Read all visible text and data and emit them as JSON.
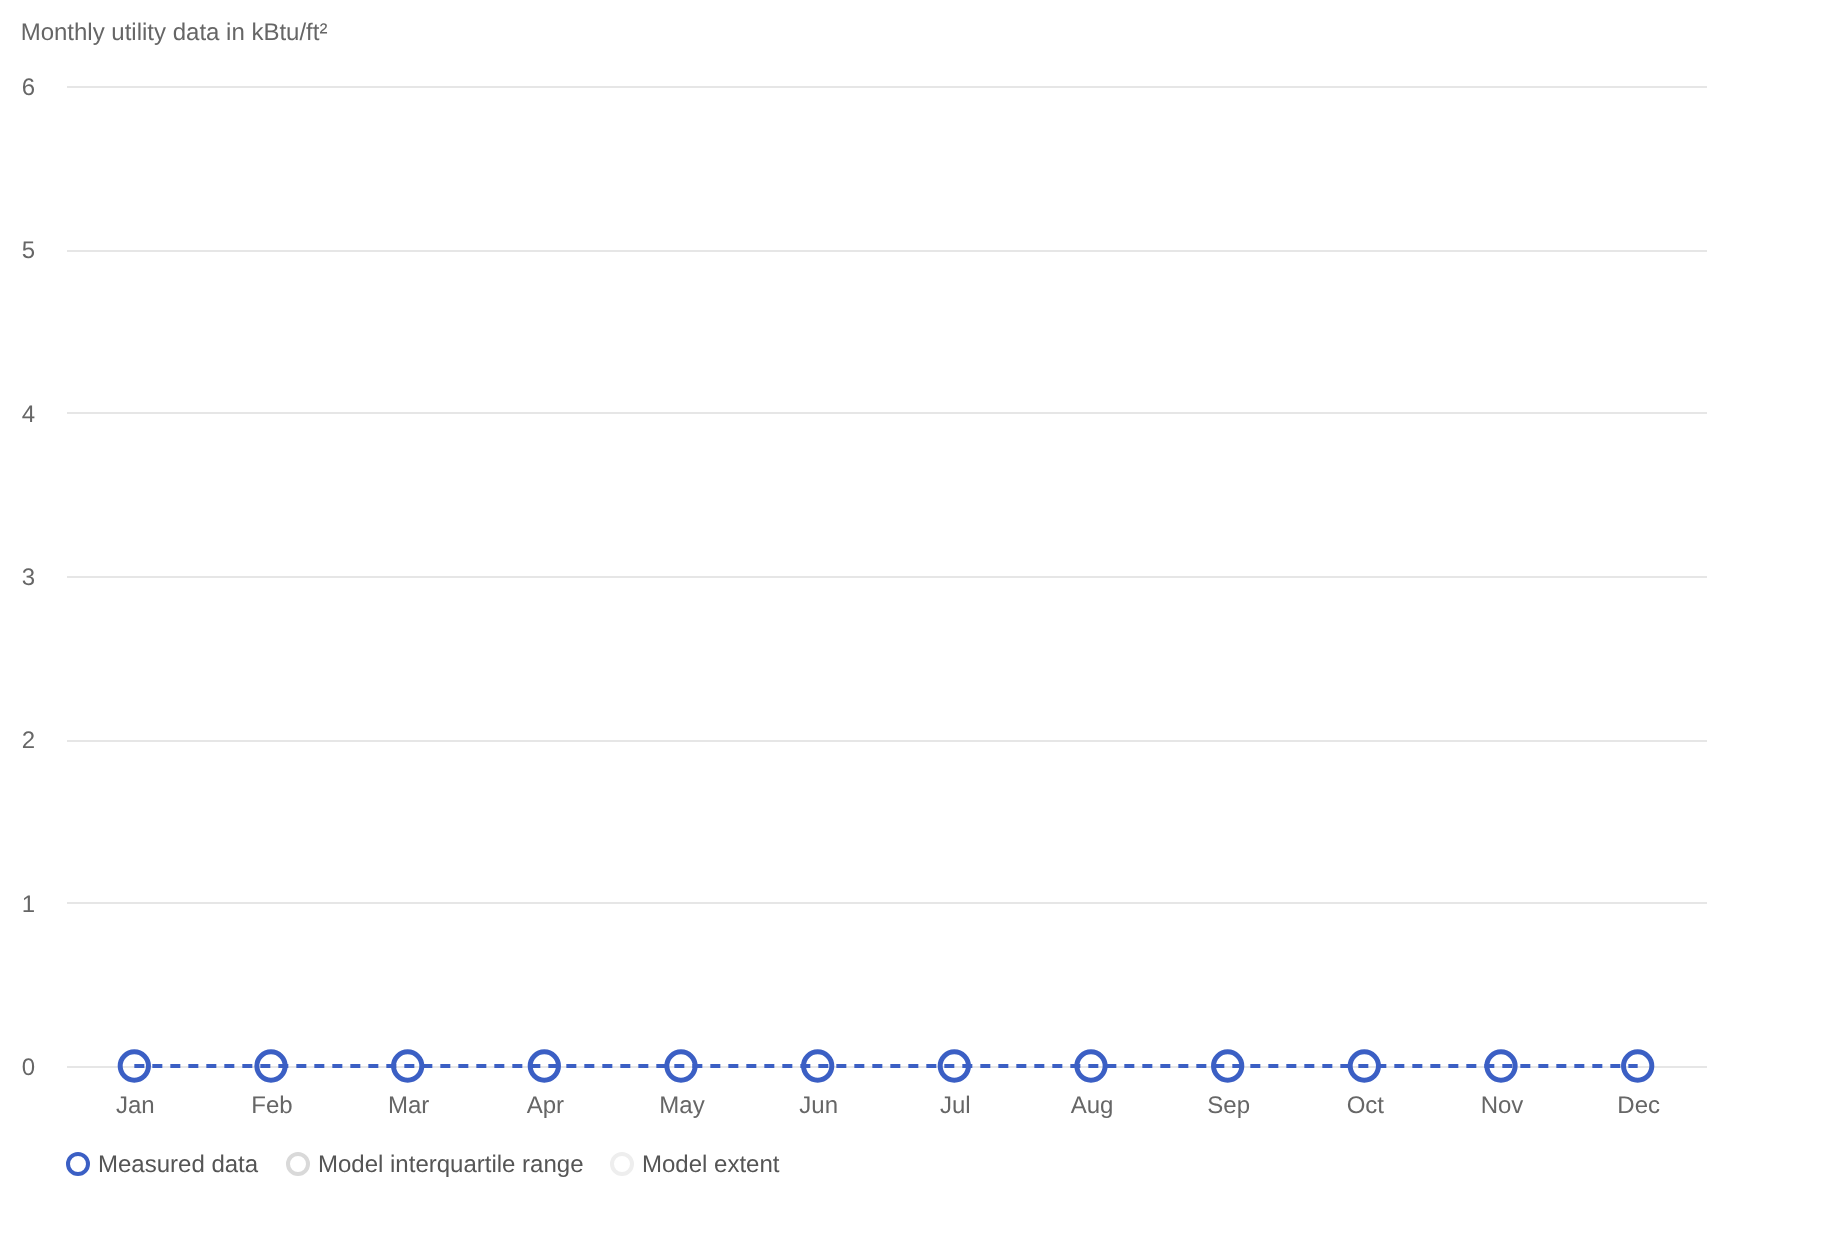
{
  "chart_data": {
    "type": "line",
    "subtitle": "Monthly utility data in kBtu/ft²",
    "categories": [
      "Jan",
      "Feb",
      "Mar",
      "Apr",
      "May",
      "Jun",
      "Jul",
      "Aug",
      "Sep",
      "Oct",
      "Nov",
      "Dec"
    ],
    "series": [
      {
        "name": "Measured data",
        "color": "#3b5fc4",
        "values": [
          0,
          0,
          0,
          0,
          0,
          0,
          0,
          0,
          0,
          0,
          0,
          0
        ]
      },
      {
        "name": "Model interquartile range",
        "color": "#d9d9d9",
        "values": [
          null,
          null,
          null,
          null,
          null,
          null,
          null,
          null,
          null,
          null,
          null,
          null
        ]
      },
      {
        "name": "Model extent",
        "color": "#eeeeee",
        "values": [
          null,
          null,
          null,
          null,
          null,
          null,
          null,
          null,
          null,
          null,
          null,
          null
        ]
      }
    ],
    "ylim": [
      0,
      6
    ],
    "yticks": [
      0,
      1,
      2,
      3,
      4,
      5,
      6
    ],
    "grid": "y",
    "legend": "bottom left",
    "marker": "circle",
    "line_style": "dashed"
  }
}
